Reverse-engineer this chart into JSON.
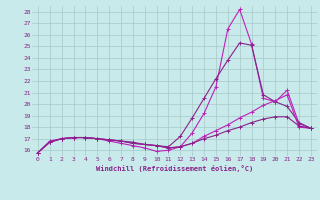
{
  "xlabel": "Windchill (Refroidissement éolien,°C)",
  "x": [
    0,
    1,
    2,
    3,
    4,
    5,
    6,
    7,
    8,
    9,
    10,
    11,
    12,
    13,
    14,
    15,
    16,
    17,
    18,
    19,
    20,
    21,
    22,
    23
  ],
  "line1": [
    15.8,
    16.8,
    17.0,
    17.1,
    17.1,
    17.0,
    16.8,
    16.6,
    16.4,
    16.2,
    15.9,
    16.0,
    16.3,
    17.5,
    19.2,
    21.5,
    26.5,
    28.2,
    25.2,
    20.5,
    20.2,
    21.2,
    18.3,
    17.9
  ],
  "line2": [
    15.8,
    16.7,
    17.0,
    17.1,
    17.1,
    17.0,
    16.9,
    16.8,
    16.7,
    16.5,
    16.4,
    16.3,
    17.2,
    18.8,
    20.5,
    22.2,
    23.8,
    25.3,
    25.1,
    20.8,
    20.2,
    19.8,
    18.4,
    17.9
  ],
  "line3": [
    15.8,
    16.7,
    17.0,
    17.1,
    17.1,
    17.0,
    16.9,
    16.8,
    16.6,
    16.5,
    16.4,
    16.2,
    16.3,
    16.6,
    17.2,
    17.7,
    18.2,
    18.8,
    19.3,
    19.9,
    20.3,
    20.8,
    18.0,
    17.9
  ],
  "line4": [
    15.8,
    16.7,
    17.0,
    17.1,
    17.1,
    17.0,
    16.9,
    16.8,
    16.6,
    16.5,
    16.4,
    16.2,
    16.3,
    16.6,
    17.0,
    17.3,
    17.7,
    18.0,
    18.4,
    18.7,
    18.9,
    18.9,
    18.1,
    17.9
  ],
  "line_colors": [
    "#bb22bb",
    "#882288",
    "#bb22bb",
    "#882288"
  ],
  "bg_color": "#c8eaea",
  "grid_color": "#a8c8c8",
  "text_color": "#882288",
  "ylim": [
    15.5,
    28.5
  ],
  "xlim": [
    -0.5,
    23.5
  ],
  "yticks": [
    16,
    17,
    18,
    19,
    20,
    21,
    22,
    23,
    24,
    25,
    26,
    27,
    28
  ],
  "xticks": [
    0,
    1,
    2,
    3,
    4,
    5,
    6,
    7,
    8,
    9,
    10,
    11,
    12,
    13,
    14,
    15,
    16,
    17,
    18,
    19,
    20,
    21,
    22,
    23
  ]
}
